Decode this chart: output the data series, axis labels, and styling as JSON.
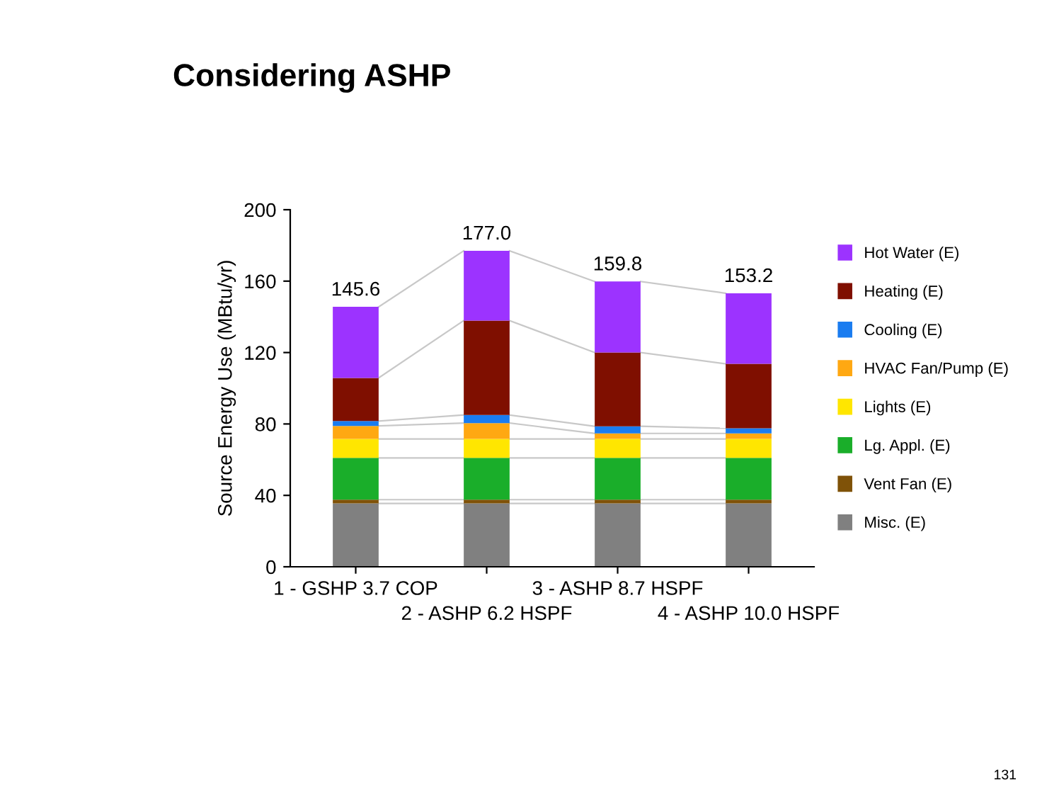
{
  "chart_data": {
    "type": "bar",
    "title": "Considering ASHP",
    "ylabel": "Source Energy Use (MBtu/yr)",
    "categories": [
      "1 - GSHP 3.7 COP",
      "2 - ASHP 6.2 HSPF",
      "3 - ASHP 8.7 HSPF",
      "4 - ASHP 10.0 HSPF"
    ],
    "stacked": true,
    "series": [
      {
        "name": "Misc. (E)",
        "color": "#808080",
        "values": [
          35.5,
          35.5,
          35.5,
          35.5
        ]
      },
      {
        "name": "Vent Fan (E)",
        "color": "#7f5208",
        "values": [
          2.1,
          2.1,
          2.1,
          2.1
        ]
      },
      {
        "name": "Lg. Appl. (E)",
        "color": "#1aae2a",
        "values": [
          23.4,
          23.4,
          23.4,
          23.4
        ]
      },
      {
        "name": "Lights (E)",
        "color": "#ffe600",
        "values": [
          10.6,
          10.6,
          10.6,
          10.6
        ]
      },
      {
        "name": "HVAC Fan/Pump (E)",
        "color": "#ffa812",
        "values": [
          7.3,
          8.9,
          3.1,
          3.1
        ]
      },
      {
        "name": "Cooling (E)",
        "color": "#1a7cf0",
        "values": [
          2.7,
          4.5,
          4.0,
          2.9
        ]
      },
      {
        "name": "Heating (E)",
        "color": "#7f0f00",
        "values": [
          24.2,
          52.9,
          41.3,
          36.1
        ]
      },
      {
        "name": "Hot Water (E)",
        "color": "#9c33ff",
        "values": [
          39.8,
          39.1,
          39.8,
          39.5
        ]
      }
    ],
    "totals": [
      "145.6",
      "177.0",
      "159.8",
      "153.2"
    ],
    "ylim": [
      0,
      200
    ],
    "yticks": [
      0,
      40,
      80,
      120,
      160,
      200
    ],
    "grid": false,
    "legend": "right",
    "annotations": [
      "131"
    ]
  }
}
